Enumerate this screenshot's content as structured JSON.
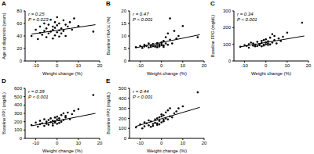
{
  "chart_data": [
    {
      "type": "scatter",
      "label": "A",
      "x_label": "Weight change (%)",
      "y_label": "Age at diagnosis (years)",
      "annotations": [
        "r = 0.25",
        "P = 0.023"
      ],
      "xlim": [
        -15,
        20
      ],
      "xticks": [
        -10,
        0,
        10,
        20
      ],
      "ylim": [
        0,
        80
      ],
      "yticks": [
        0,
        20,
        40,
        60,
        80
      ],
      "color": "#000000",
      "marker": "circle",
      "x": [
        -12,
        -10,
        -9,
        -8,
        -8,
        -7,
        -6,
        -6,
        -5,
        -5,
        -4,
        -4,
        -3,
        -3,
        -2,
        -2,
        -2,
        -1,
        -1,
        -1,
        0,
        0,
        0,
        1,
        1,
        1,
        2,
        2,
        3,
        3,
        4,
        4,
        5,
        6,
        7,
        8,
        10,
        17
      ],
      "values": [
        40,
        50,
        35,
        55,
        45,
        42,
        60,
        48,
        38,
        52,
        58,
        44,
        66,
        47,
        36,
        50,
        55,
        62,
        41,
        53,
        46,
        57,
        70,
        49,
        39,
        60,
        52,
        44,
        65,
        48,
        58,
        40,
        55,
        62,
        50,
        68,
        56,
        47
      ],
      "fit": {
        "x": [
          -12,
          18
        ],
        "y": [
          43,
          58
        ]
      }
    },
    {
      "type": "scatter",
      "label": "B",
      "x_label": "Weight change (%)",
      "y_label": "Baseline HbA1c (%)",
      "annotations": [
        "r = 0.47",
        "P < 0.001"
      ],
      "xlim": [
        -15,
        20
      ],
      "xticks": [
        -10,
        0,
        10,
        20
      ],
      "ylim": [
        0,
        20
      ],
      "yticks": [
        0,
        5,
        10,
        15,
        20
      ],
      "color": "#000000",
      "marker": "circle",
      "x": [
        -12,
        -10,
        -9,
        -8,
        -8,
        -7,
        -6,
        -6,
        -5,
        -5,
        -4,
        -4,
        -3,
        -3,
        -2,
        -2,
        -2,
        -1,
        -1,
        -1,
        0,
        0,
        0,
        1,
        1,
        1,
        2,
        2,
        3,
        3,
        4,
        4,
        5,
        6,
        7,
        8,
        10,
        17
      ],
      "values": [
        5.5,
        6,
        5.2,
        6.5,
        5.8,
        6,
        5.4,
        7,
        5.6,
        6.2,
        5.9,
        6.8,
        5.7,
        6.1,
        6.4,
        5.5,
        7.2,
        6,
        6.6,
        5.8,
        6.3,
        7.5,
        6.9,
        5.6,
        8,
        6.2,
        7,
        9.5,
        6.5,
        11,
        8.5,
        17,
        7,
        12,
        9,
        10,
        14,
        9.5
      ],
      "fit": {
        "x": [
          -12,
          18
        ],
        "y": [
          5.3,
          10.5
        ]
      }
    },
    {
      "type": "scatter",
      "label": "C",
      "x_label": "Weight change (%)",
      "y_label": "Baseline FPG (mg/dL)",
      "annotations": [
        "r = 0.34",
        "P < 0.001"
      ],
      "xlim": [
        -15,
        20
      ],
      "xticks": [
        -10,
        0,
        10,
        20
      ],
      "ylim": [
        0,
        300
      ],
      "yticks": [
        0,
        100,
        200,
        300
      ],
      "color": "#000000",
      "marker": "circle",
      "x": [
        -12,
        -10,
        -9,
        -8,
        -8,
        -7,
        -6,
        -6,
        -5,
        -5,
        -4,
        -4,
        -3,
        -3,
        -2,
        -2,
        -2,
        -1,
        -1,
        -1,
        0,
        0,
        0,
        1,
        1,
        1,
        2,
        2,
        3,
        3,
        4,
        4,
        5,
        6,
        7,
        8,
        10,
        17
      ],
      "values": [
        85,
        95,
        90,
        100,
        80,
        110,
        92,
        105,
        88,
        98,
        115,
        90,
        102,
        95,
        120,
        88,
        108,
        97,
        125,
        93,
        100,
        112,
        130,
        96,
        118,
        105,
        140,
        99,
        160,
        110,
        125,
        150,
        105,
        135,
        120,
        145,
        170,
        230
      ],
      "fit": {
        "x": [
          -12,
          18
        ],
        "y": [
          85,
          150
        ]
      }
    },
    {
      "type": "scatter",
      "label": "D",
      "x_label": "Weight change (%)",
      "y_label": "Baseline PP1 (mg/dL)",
      "annotations": [
        "r = 0.39",
        "P < 0.001"
      ],
      "xlim": [
        -15,
        20
      ],
      "xticks": [
        -10,
        0,
        10,
        20
      ],
      "ylim": [
        0,
        600
      ],
      "yticks": [
        0,
        100,
        200,
        300,
        400,
        500,
        600
      ],
      "color": "#000000",
      "marker": "circle",
      "x": [
        -12,
        -10,
        -9,
        -8,
        -8,
        -7,
        -6,
        -6,
        -5,
        -5,
        -4,
        -4,
        -3,
        -3,
        -2,
        -2,
        -2,
        -1,
        -1,
        -1,
        0,
        0,
        0,
        1,
        1,
        1,
        2,
        2,
        3,
        3,
        4,
        4,
        5,
        6,
        7,
        8,
        10,
        17
      ],
      "values": [
        160,
        190,
        140,
        210,
        170,
        180,
        230,
        150,
        200,
        175,
        220,
        165,
        195,
        240,
        180,
        210,
        155,
        250,
        190,
        205,
        230,
        175,
        260,
        215,
        185,
        240,
        200,
        280,
        220,
        300,
        250,
        270,
        310,
        230,
        290,
        330,
        350,
        520
      ],
      "fit": {
        "x": [
          -12,
          18
        ],
        "y": [
          150,
          300
        ]
      }
    },
    {
      "type": "scatter",
      "label": "E",
      "x_label": "Weight change (%)",
      "y_label": "Baseline PP2 (mg/dL)",
      "annotations": [
        "r = 0.44",
        "P < 0.001"
      ],
      "xlim": [
        -15,
        20
      ],
      "xticks": [
        -10,
        0,
        10,
        20
      ],
      "ylim": [
        0,
        500
      ],
      "yticks": [
        0,
        100,
        200,
        300,
        400,
        500
      ],
      "color": "#000000",
      "marker": "circle",
      "x": [
        -12,
        -10,
        -9,
        -8,
        -8,
        -7,
        -6,
        -6,
        -5,
        -5,
        -4,
        -4,
        -3,
        -3,
        -2,
        -2,
        -2,
        -1,
        -1,
        -1,
        0,
        0,
        0,
        1,
        1,
        1,
        2,
        2,
        3,
        3,
        4,
        4,
        5,
        6,
        7,
        8,
        10,
        17
      ],
      "values": [
        110,
        140,
        100,
        160,
        120,
        150,
        130,
        180,
        115,
        170,
        145,
        125,
        190,
        155,
        135,
        200,
        150,
        210,
        140,
        175,
        220,
        160,
        240,
        185,
        170,
        230,
        200,
        260,
        190,
        280,
        220,
        300,
        210,
        250,
        270,
        300,
        320,
        460
      ],
      "fit": {
        "x": [
          -12,
          18
        ],
        "y": [
          120,
          310
        ]
      }
    }
  ]
}
